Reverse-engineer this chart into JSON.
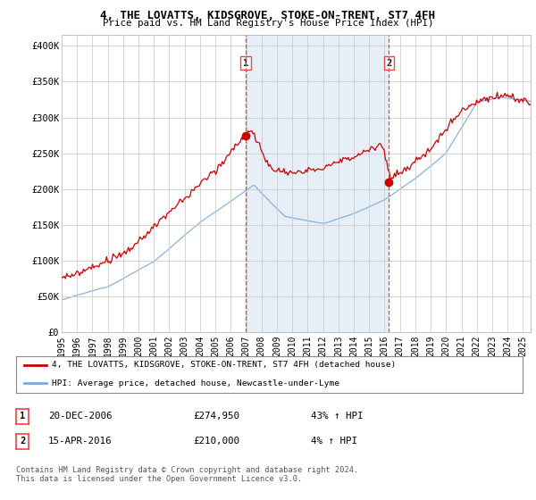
{
  "title": "4, THE LOVATTS, KIDSGROVE, STOKE-ON-TRENT, ST7 4FH",
  "subtitle": "Price paid vs. HM Land Registry's House Price Index (HPI)",
  "ylabel_values": [
    "£0",
    "£50K",
    "£100K",
    "£150K",
    "£200K",
    "£250K",
    "£300K",
    "£350K",
    "£400K"
  ],
  "y_ticks": [
    0,
    50000,
    100000,
    150000,
    200000,
    250000,
    300000,
    350000,
    400000
  ],
  "ylim": [
    0,
    415000
  ],
  "xlim_start": 1995.0,
  "xlim_end": 2025.5,
  "transaction1_date": 2006.97,
  "transaction1_value": 274950,
  "transaction2_date": 2016.29,
  "transaction2_value": 210000,
  "red_line_color": "#cc0000",
  "blue_line_color": "#7aaadd",
  "shade_color": "#dce9f5",
  "dashed_line_color": "#ee4444",
  "marker_color": "#cc0000",
  "legend_label_red": "4, THE LOVATTS, KIDSGROVE, STOKE-ON-TRENT, ST7 4FH (detached house)",
  "legend_label_blue": "HPI: Average price, detached house, Newcastle-under-Lyme",
  "annotation1_date": "20-DEC-2006",
  "annotation1_price": "£274,950",
  "annotation1_hpi": "43% ↑ HPI",
  "annotation2_date": "15-APR-2016",
  "annotation2_price": "£210,000",
  "annotation2_hpi": "4% ↑ HPI",
  "footnote": "Contains HM Land Registry data © Crown copyright and database right 2024.\nThis data is licensed under the Open Government Licence v3.0.",
  "plot_bg_color": "#ffffff",
  "fig_bg_color": "#ffffff",
  "grid_color": "#cccccc"
}
